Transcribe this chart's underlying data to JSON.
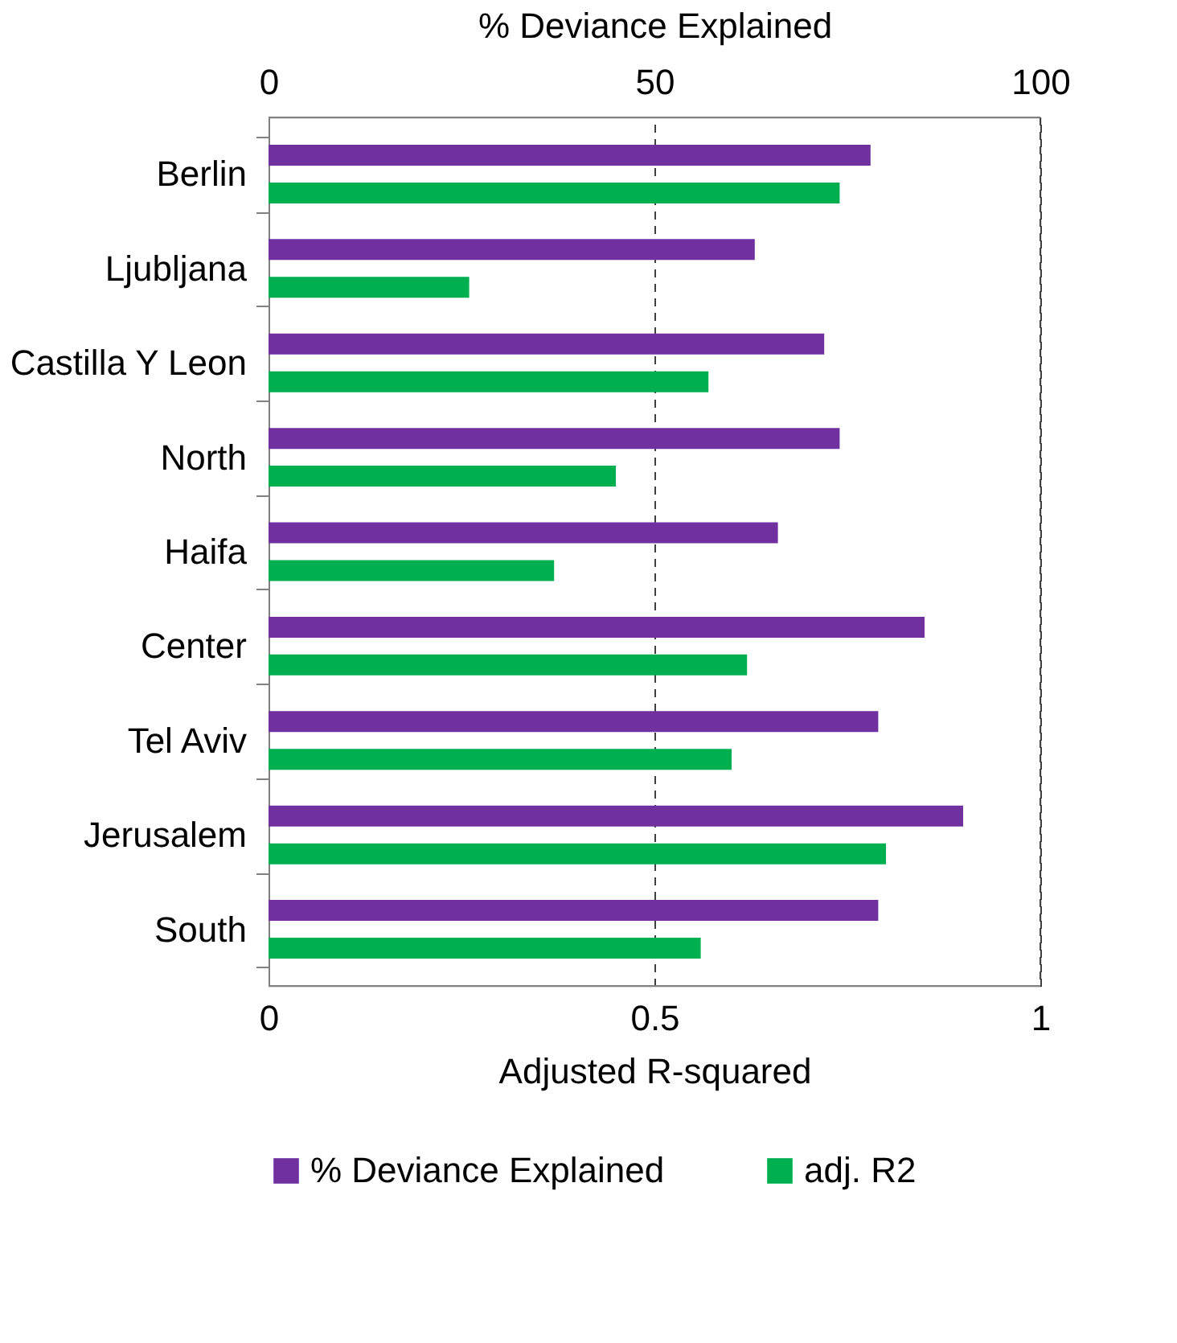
{
  "chart_data": {
    "type": "bar",
    "orientation": "horizontal",
    "categories": [
      "Berlin",
      "Ljubljana",
      "Castilla Y Leon",
      "North",
      "Haifa",
      "Center",
      "Tel Aviv",
      "Jerusalem",
      "South"
    ],
    "series": [
      {
        "name": "% Deviance Explained",
        "color": "#7030a0",
        "axis": "x2",
        "values": [
          78,
          63,
          72,
          74,
          66,
          85,
          79,
          90,
          79
        ]
      },
      {
        "name": "adj. R2",
        "color": "#00b050",
        "values": [
          0.74,
          0.26,
          0.57,
          0.45,
          0.37,
          0.62,
          0.6,
          0.8,
          0.56
        ]
      }
    ],
    "xlabel": "Adjusted R-squared",
    "xlim": [
      0,
      1
    ],
    "xticks": [
      0,
      0.5,
      1
    ],
    "x2label": "% Deviance Explained",
    "x2lim": [
      0,
      100
    ],
    "x2ticks": [
      0,
      50,
      100
    ],
    "grid": "x",
    "legend": "bottom"
  }
}
